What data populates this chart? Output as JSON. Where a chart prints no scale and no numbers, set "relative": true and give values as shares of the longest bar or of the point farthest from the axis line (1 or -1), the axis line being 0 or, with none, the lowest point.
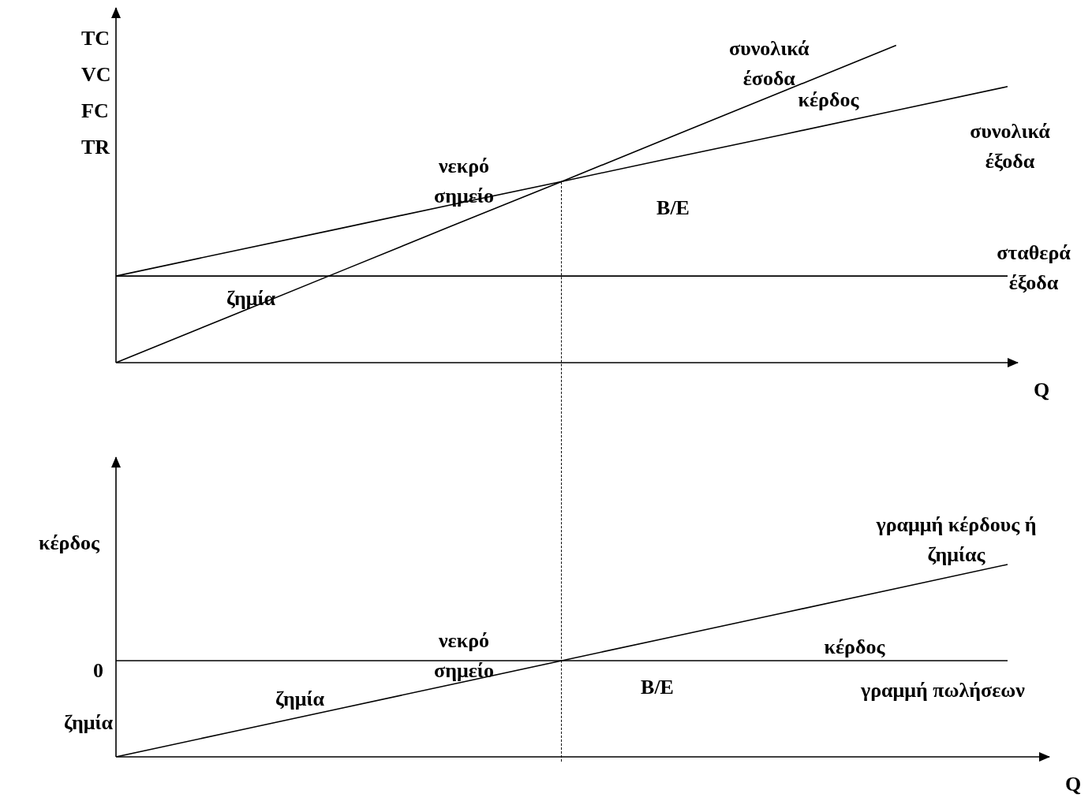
{
  "chart_data": [
    {
      "type": "line",
      "ylabel": "TC\nVC\nFC\nTR",
      "xlabel": "Q",
      "relative": true,
      "categories": [
        null,
        null,
        null,
        null,
        null,
        null,
        null,
        null,
        null
      ],
      "tick_labels": false,
      "marker": "none",
      "line_style": "solid",
      "legend": false,
      "series": [
        {
          "name": "συνολικά έσοδα",
          "color": "#000000",
          "values": [
            0,
            0.143,
            0.286,
            0.429,
            0.571,
            0.714,
            0.857,
            1,
            null
          ]
        },
        {
          "name": "συνολικά έξοδα",
          "color": "#000000",
          "values": [
            0.273,
            0.348,
            0.422,
            0.497,
            0.571,
            0.646,
            0.72,
            0.795,
            0.87
          ]
        },
        {
          "name": "σταθερά έξοδα",
          "color": "#000000",
          "values": [
            0.273,
            0.273,
            0.273,
            0.273,
            0.273,
            0.273,
            0.273,
            0.273,
            0.273
          ]
        }
      ],
      "annotations": [
        "νεκρό\nσημείο",
        "κέρδος",
        "ζημία",
        "B/E"
      ]
    },
    {
      "type": "line",
      "xlabel": "Q",
      "relative": true,
      "categories": [
        null,
        null,
        null,
        null,
        null,
        null,
        null,
        null,
        null
      ],
      "tick_labels": false,
      "marker": "none",
      "line_style": "solid",
      "legend": false,
      "series": [
        {
          "name": "γραμμή κέρδους ή ζημίας",
          "color": "#000000",
          "values": [
            0,
            0.125,
            0.25,
            0.375,
            0.5,
            0.625,
            0.75,
            0.875,
            1
          ]
        },
        {
          "name": "γραμμή πωλήσεων",
          "color": "#000000",
          "values": [
            0.5,
            0.5,
            0.5,
            0.5,
            0.5,
            0.5,
            0.5,
            0.5,
            0.5
          ]
        }
      ],
      "annotations": [
        "0",
        "κέρδος",
        "ζημία",
        "νεκρό\nσημείο",
        "ζημία",
        "B/E",
        "κέρδος"
      ]
    }
  ]
}
